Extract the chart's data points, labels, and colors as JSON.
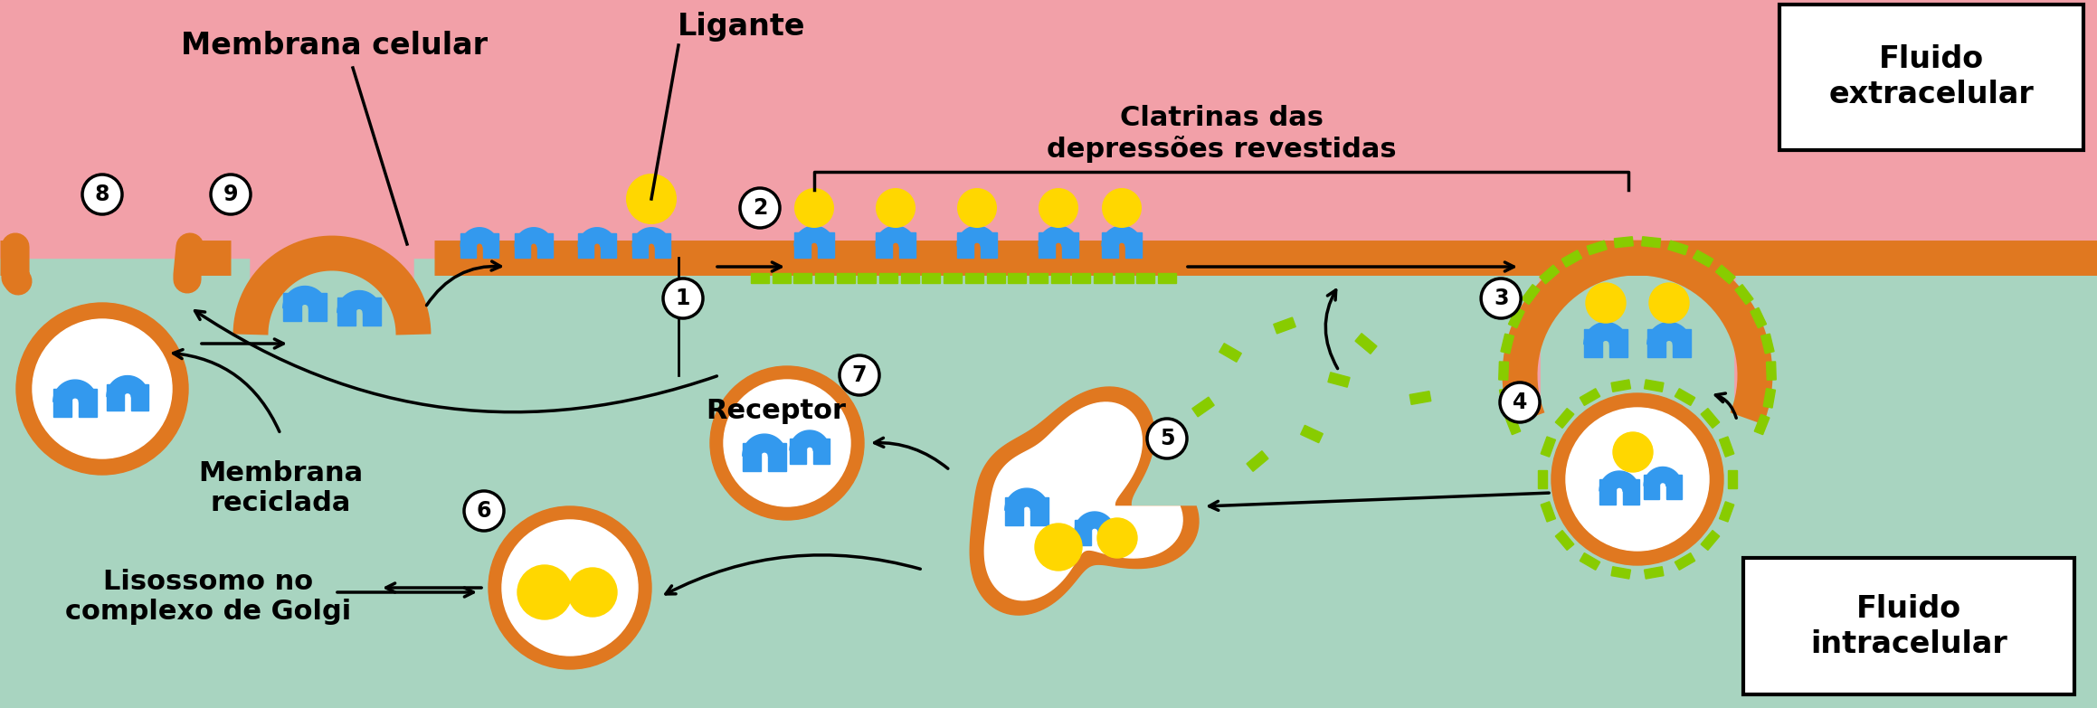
{
  "bg_extracellular": "#F2A0A8",
  "bg_intracellular": "#A8D4C0",
  "membrane_color": "#E07820",
  "blue_receptor": "#3399EE",
  "yellow_ligand": "#FFD700",
  "green_clathrin": "#88CC00",
  "white_fill": "#FFFFFF",
  "black": "#000000",
  "figsize": [
    23.18,
    7.83
  ],
  "dpi": 100,
  "text_membrana_celular": "Membrana celular",
  "text_ligante": "Ligante",
  "text_clatrinas": "Clatrinas das\ndepressões revestidas",
  "text_fluido_extra": "Fluido\nextracelular",
  "text_receptor": "Receptor",
  "text_membrana_reciclada": "Membrana\nreciclada",
  "text_lisossomo": "Lisossomo no\ncomplexo de Golgi",
  "text_fluido_intra": "Fluido\nintracelular"
}
